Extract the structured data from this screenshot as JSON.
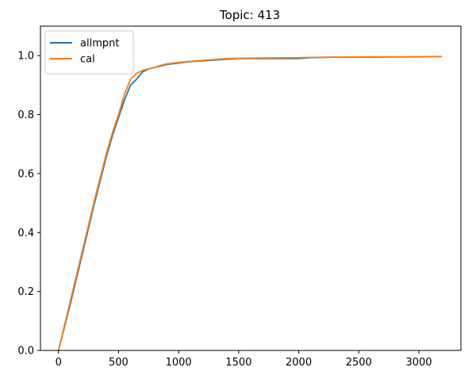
{
  "chart_data": {
    "type": "line",
    "title": "Topic: 413",
    "xlabel": "",
    "ylabel": "",
    "xlim": [
      -150,
      3350
    ],
    "ylim": [
      0.0,
      1.1
    ],
    "xticks": [
      0,
      500,
      1000,
      1500,
      2000,
      2500,
      3000
    ],
    "xtick_labels": [
      "0",
      "500",
      "1000",
      "1500",
      "2000",
      "2500",
      "3000"
    ],
    "yticks": [
      0.0,
      0.2,
      0.4,
      0.6,
      0.8,
      1.0
    ],
    "ytick_labels": [
      "0.0",
      "0.2",
      "0.4",
      "0.6",
      "0.8",
      "1.0"
    ],
    "grid": false,
    "legend_position": "top-left",
    "series": [
      {
        "name": "allmpnt",
        "color": "#1f77b4",
        "x": [
          0,
          100,
          200,
          300,
          400,
          450,
          500,
          550,
          600,
          650,
          700,
          750,
          800,
          850,
          900,
          1000,
          1100,
          1200,
          1300,
          1400,
          1500,
          1700,
          2000,
          2100,
          2300,
          2600,
          3000,
          3190
        ],
        "y": [
          0.0,
          0.16,
          0.33,
          0.5,
          0.66,
          0.73,
          0.79,
          0.85,
          0.9,
          0.92,
          0.945,
          0.955,
          0.96,
          0.965,
          0.97,
          0.975,
          0.98,
          0.982,
          0.985,
          0.988,
          0.99,
          0.99,
          0.99,
          0.993,
          0.995,
          0.995,
          0.996,
          0.997
        ]
      },
      {
        "name": "cal",
        "color": "#ff7f0e",
        "x": [
          0,
          100,
          200,
          300,
          400,
          450,
          500,
          550,
          600,
          650,
          700,
          750,
          800,
          850,
          900,
          1000,
          1100,
          1200,
          1300,
          1400,
          1500,
          1700,
          2000,
          2100,
          2300,
          2600,
          3000,
          3190
        ],
        "y": [
          0.0,
          0.17,
          0.34,
          0.51,
          0.67,
          0.74,
          0.8,
          0.87,
          0.92,
          0.94,
          0.95,
          0.955,
          0.96,
          0.967,
          0.972,
          0.977,
          0.981,
          0.984,
          0.987,
          0.99,
          0.991,
          0.992,
          0.993,
          0.994,
          0.995,
          0.996,
          0.996,
          0.997
        ]
      }
    ]
  }
}
